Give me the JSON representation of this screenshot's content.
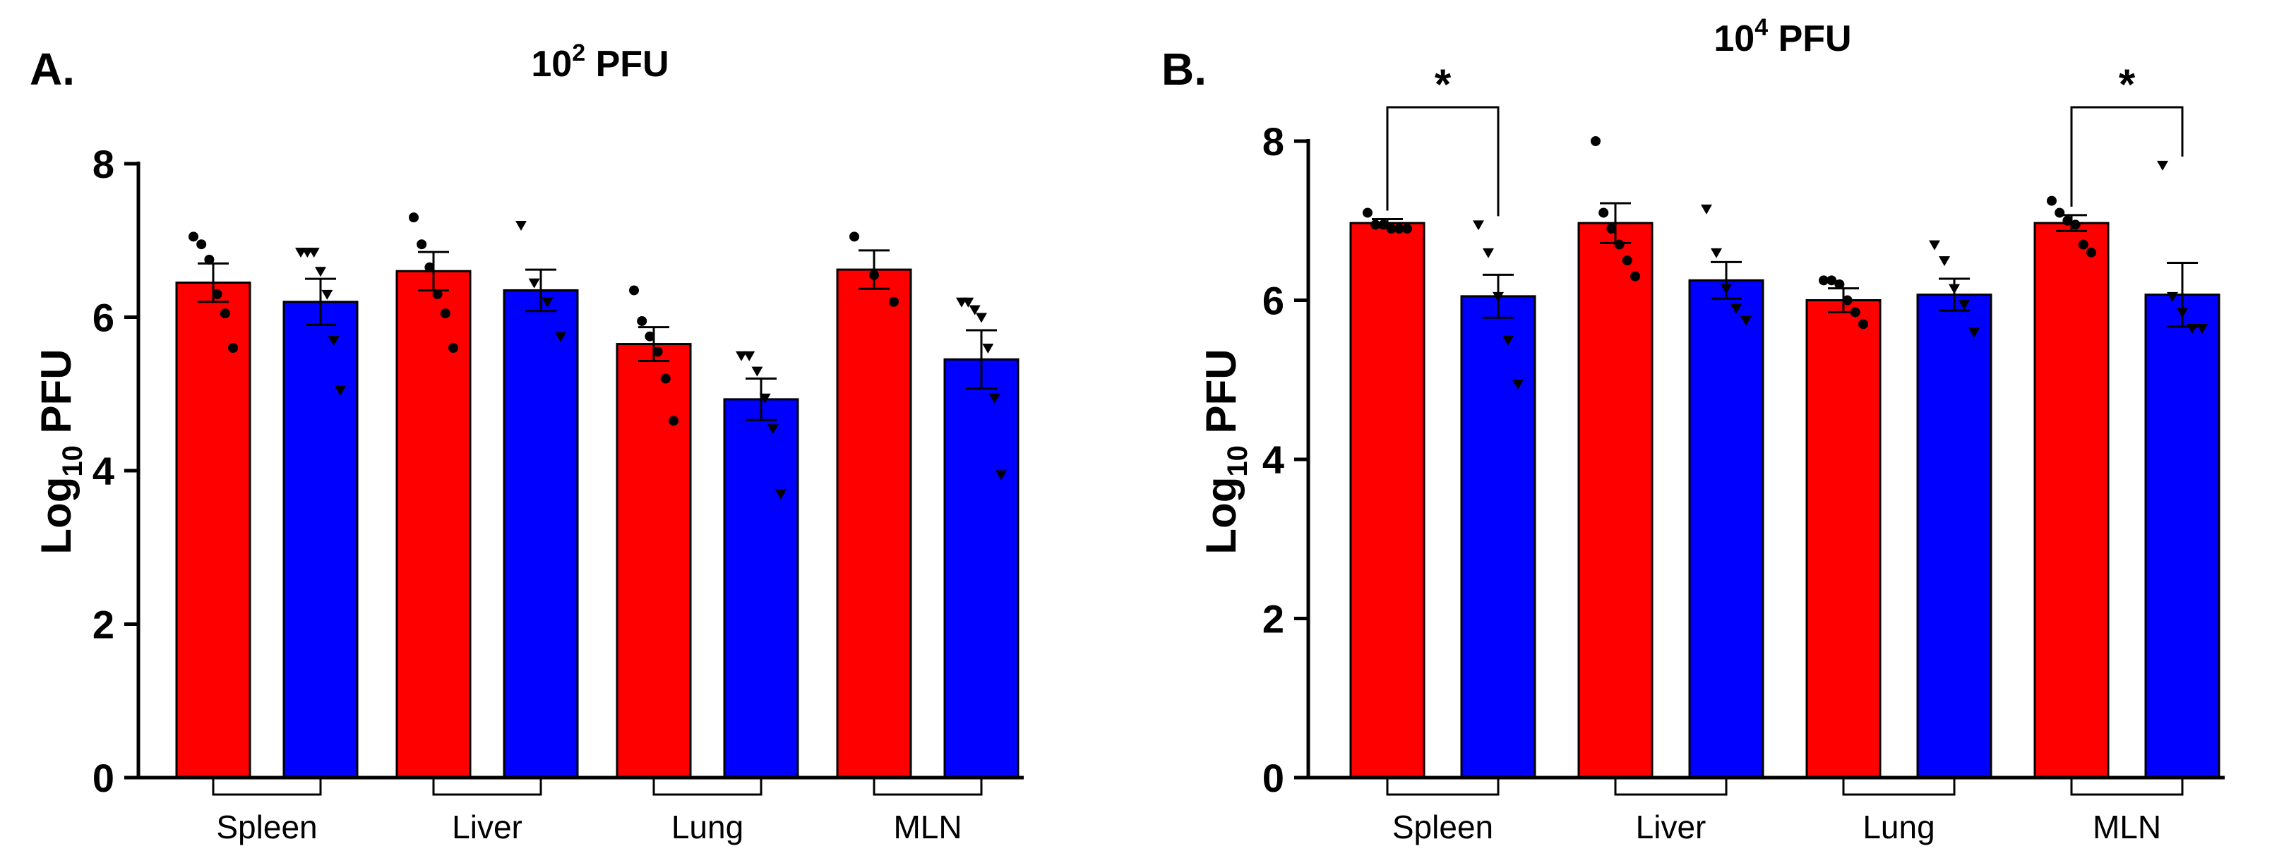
{
  "colors": {
    "red": "#ff0000",
    "blue": "#0000ff",
    "axis": "#000000"
  },
  "chart_data": [
    {
      "type": "bar",
      "panel_label": "A.",
      "title_base": "10",
      "title_exp": "2",
      "title_unit": " PFU",
      "ylabel_main": "Log",
      "ylabel_sub": "10",
      "ylabel_unit": " PFU",
      "ylim": [
        0,
        8
      ],
      "yticks": [
        "0",
        "2",
        "4",
        "6",
        "8"
      ],
      "categories": [
        "Spleen",
        "Liver",
        "Lung",
        "MLN"
      ],
      "series": [
        {
          "name": "red group",
          "color": "#ff0000",
          "marker": "circle",
          "values": [
            6.45,
            6.6,
            5.65,
            6.62
          ],
          "errors": [
            0.25,
            0.25,
            0.22,
            0.25
          ],
          "points": [
            [
              7.05,
              6.95,
              6.75,
              6.3,
              6.05,
              5.6
            ],
            [
              7.3,
              6.95,
              6.65,
              6.3,
              6.05,
              5.6
            ],
            [
              6.35,
              5.95,
              5.75,
              5.55,
              5.2,
              4.65
            ],
            [
              7.05,
              6.55,
              6.2
            ]
          ]
        },
        {
          "name": "blue group",
          "color": "#0000ff",
          "marker": "triangle",
          "values": [
            6.2,
            6.35,
            4.93,
            5.45
          ],
          "errors": [
            0.3,
            0.27,
            0.27,
            0.38
          ],
          "points": [
            [
              6.85,
              6.85,
              6.85,
              6.6,
              6.3,
              5.7,
              5.05
            ],
            [
              7.2,
              6.45,
              6.2,
              5.75
            ],
            [
              5.5,
              5.5,
              5.3,
              4.95,
              4.55,
              3.7
            ],
            [
              6.2,
              6.2,
              6.1,
              6.0,
              5.6,
              4.95,
              3.95
            ]
          ]
        }
      ],
      "significance": []
    },
    {
      "type": "bar",
      "panel_label": "B.",
      "title_base": "10",
      "title_exp": "4",
      "title_unit": " PFU",
      "ylabel_main": "Log",
      "ylabel_sub": "10",
      "ylabel_unit": " PFU",
      "ylim": [
        0,
        8
      ],
      "yticks": [
        "0",
        "2",
        "4",
        "6",
        "8"
      ],
      "categories": [
        "Spleen",
        "Liver",
        "Lung",
        "MLN"
      ],
      "series": [
        {
          "name": "red group",
          "color": "#ff0000",
          "marker": "circle",
          "values": [
            6.97,
            6.97,
            6.0,
            6.97
          ],
          "errors": [
            0.05,
            0.25,
            0.15,
            0.1
          ],
          "points": [
            [
              7.1,
              6.95,
              6.95,
              6.9,
              6.9,
              6.9
            ],
            [
              8.0,
              7.1,
              6.9,
              6.7,
              6.5,
              6.3
            ],
            [
              6.25,
              6.25,
              6.2,
              6.0,
              5.85,
              5.7
            ],
            [
              7.25,
              7.1,
              7.0,
              6.95,
              6.7,
              6.6
            ]
          ]
        },
        {
          "name": "blue group",
          "color": "#0000ff",
          "marker": "triangle",
          "values": [
            6.05,
            6.25,
            6.07,
            6.07
          ],
          "errors": [
            0.27,
            0.23,
            0.2,
            0.4
          ],
          "points": [
            [
              6.95,
              6.6,
              6.05,
              5.5,
              4.95
            ],
            [
              7.15,
              6.6,
              6.15,
              5.9,
              5.75
            ],
            [
              6.7,
              6.5,
              6.15,
              5.95,
              5.6
            ],
            [
              7.7,
              6.05,
              5.85,
              5.65,
              5.65
            ]
          ]
        }
      ],
      "significance": [
        {
          "category_index": 0,
          "label": "*"
        },
        {
          "category_index": 3,
          "label": "*"
        }
      ]
    }
  ]
}
